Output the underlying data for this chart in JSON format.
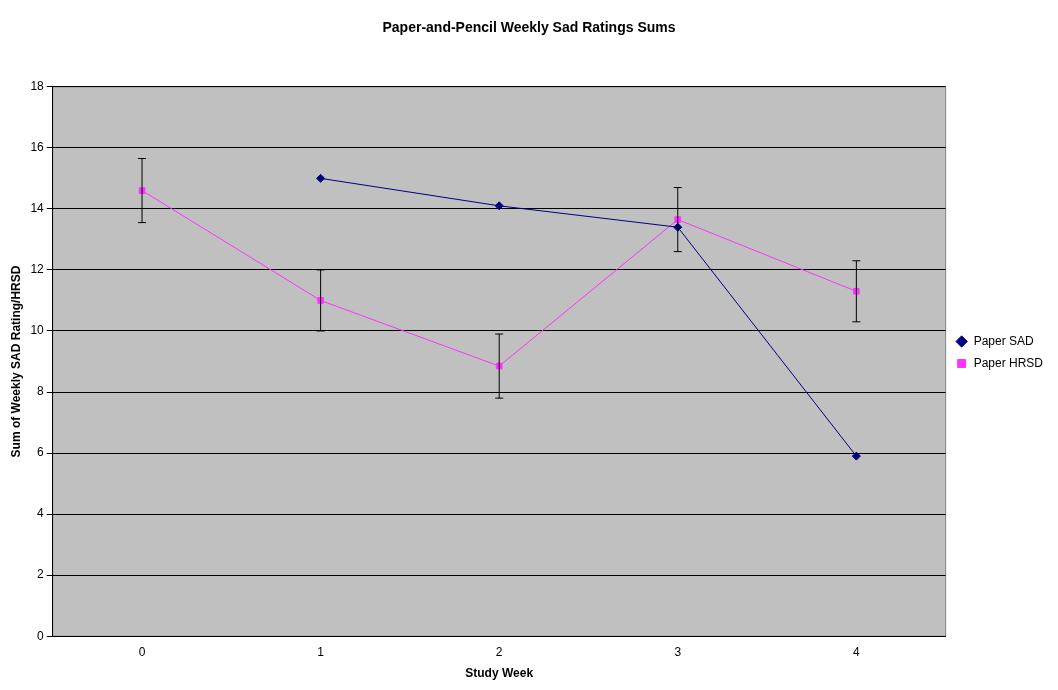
{
  "chart_data": {
    "type": "line",
    "title": "Paper-and-Pencil Weekly Sad Ratings Sums",
    "xlabel": "Study Week",
    "ylabel": "Sum of Weekly SAD Rating/HRSD",
    "categories": [
      "0",
      "1",
      "2",
      "3",
      "4"
    ],
    "series": [
      {
        "name": "Paper SAD",
        "color": "#000080",
        "marker": "diamond",
        "values": [
          null,
          15.0,
          14.1,
          13.4,
          5.9
        ]
      },
      {
        "name": "Paper HRSD",
        "color": "#ff33ff",
        "marker": "square",
        "values": [
          14.6,
          11.0,
          8.85,
          13.65,
          11.3
        ],
        "errors": [
          1.05,
          1.0,
          1.05,
          1.05,
          1.0
        ]
      }
    ],
    "ylim": [
      0,
      18
    ],
    "yticks": [
      0,
      2,
      4,
      6,
      8,
      10,
      12,
      14,
      16,
      18
    ],
    "grid": "y",
    "legend": "right"
  }
}
